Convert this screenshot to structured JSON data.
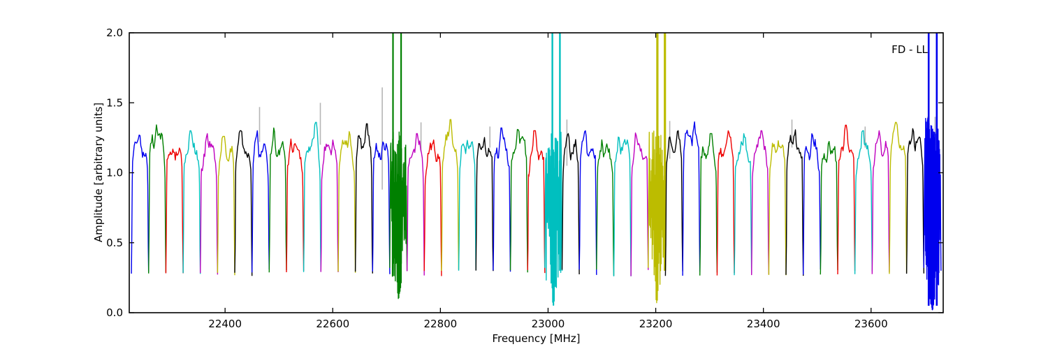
{
  "chart_data": {
    "type": "line",
    "title": "",
    "annotation": "FD - LL",
    "xlabel": "Frequency [MHz]",
    "ylabel": "Amplitude [arbitrary units]",
    "xlim": [
      22222,
      23734
    ],
    "ylim": [
      0.0,
      2.0
    ],
    "xticks": [
      22400,
      22600,
      22800,
      23000,
      23200,
      23400,
      23600
    ],
    "xtick_labels": [
      "22400",
      "22600",
      "22800",
      "23000",
      "23200",
      "23400",
      "23600"
    ],
    "yticks": [
      0.0,
      0.5,
      1.0,
      1.5,
      2.0
    ],
    "ytick_labels": [
      "0.0",
      "0.5",
      "1.0",
      "1.5",
      "2.0"
    ],
    "grid": false,
    "legend": null,
    "palette": {
      "b": "#0000ee",
      "g": "#008000",
      "r": "#ee0000",
      "c": "#00bfbf",
      "m": "#bf00bf",
      "y": "#bcbc00",
      "k": "#000000",
      "gray": "#b5b5b5"
    },
    "subband_width_mhz": 32,
    "baseline_dip_level": 0.28,
    "subbands": [
      {
        "color": "b",
        "f0": 22226,
        "f1": 22258,
        "plateau": 1.17,
        "peak": 1.27,
        "noisy": false
      },
      {
        "color": "g",
        "f0": 22258,
        "f1": 22290,
        "plateau": 1.22,
        "peak": 1.37,
        "noisy": false
      },
      {
        "color": "r",
        "f0": 22290,
        "f1": 22322,
        "plateau": 1.14,
        "peak": 1.22,
        "noisy": false
      },
      {
        "color": "c",
        "f0": 22322,
        "f1": 22354,
        "plateau": 1.18,
        "peak": 1.3,
        "noisy": false
      },
      {
        "color": "m",
        "f0": 22354,
        "f1": 22386,
        "plateau": 1.16,
        "peak": 1.28,
        "noisy": false
      },
      {
        "color": "y",
        "f0": 22386,
        "f1": 22418,
        "plateau": 1.16,
        "peak": 1.26,
        "noisy": false
      },
      {
        "color": "k",
        "f0": 22418,
        "f1": 22450,
        "plateau": 1.18,
        "peak": 1.3,
        "noisy": false
      },
      {
        "color": "b",
        "f0": 22450,
        "f1": 22482,
        "plateau": 1.16,
        "peak": 1.3,
        "noisy": false
      },
      {
        "color": "g",
        "f0": 22482,
        "f1": 22514,
        "plateau": 1.18,
        "peak": 1.32,
        "noisy": false
      },
      {
        "color": "r",
        "f0": 22514,
        "f1": 22546,
        "plateau": 1.16,
        "peak": 1.28,
        "noisy": false
      },
      {
        "color": "c",
        "f0": 22546,
        "f1": 22578,
        "plateau": 1.2,
        "peak": 1.36,
        "noisy": false
      },
      {
        "color": "m",
        "f0": 22578,
        "f1": 22610,
        "plateau": 1.16,
        "peak": 1.26,
        "noisy": false
      },
      {
        "color": "y",
        "f0": 22610,
        "f1": 22642,
        "plateau": 1.18,
        "peak": 1.3,
        "noisy": false
      },
      {
        "color": "k",
        "f0": 22642,
        "f1": 22674,
        "plateau": 1.22,
        "peak": 1.35,
        "noisy": false
      },
      {
        "color": "b",
        "f0": 22674,
        "f1": 22706,
        "plateau": 1.16,
        "peak": 1.28,
        "noisy": false
      },
      {
        "color": "g",
        "f0": 22706,
        "f1": 22738,
        "plateau": 1.15,
        "peak": 1.3,
        "noisy": true,
        "spikes": [
          22712,
          22727
        ],
        "spike_base": 0.35,
        "spike_width": 2.2,
        "dip_min": 0.1,
        "step": 0.55
      },
      {
        "color": "m",
        "f0": 22738,
        "f1": 22770,
        "plateau": 1.16,
        "peak": 1.28,
        "noisy": false
      },
      {
        "color": "r",
        "f0": 22770,
        "f1": 22802,
        "plateau": 1.14,
        "peak": 1.24,
        "noisy": false
      },
      {
        "color": "y",
        "f0": 22802,
        "f1": 22834,
        "plateau": 1.22,
        "peak": 1.38,
        "noisy": false
      },
      {
        "color": "c",
        "f0": 22834,
        "f1": 22866,
        "plateau": 1.16,
        "peak": 1.28,
        "noisy": false
      },
      {
        "color": "k",
        "f0": 22866,
        "f1": 22898,
        "plateau": 1.16,
        "peak": 1.3,
        "noisy": false
      },
      {
        "color": "b",
        "f0": 22898,
        "f1": 22930,
        "plateau": 1.18,
        "peak": 1.32,
        "noisy": false
      },
      {
        "color": "g",
        "f0": 22930,
        "f1": 22962,
        "plateau": 1.2,
        "peak": 1.36,
        "noisy": false
      },
      {
        "color": "r",
        "f0": 22962,
        "f1": 22994,
        "plateau": 1.16,
        "peak": 1.3,
        "noisy": false
      },
      {
        "color": "c",
        "f0": 22994,
        "f1": 23026,
        "plateau": 1.15,
        "peak": 1.28,
        "noisy": true,
        "spikes": [
          23008,
          23022
        ],
        "spike_base": 0.3,
        "spike_width": 2.4,
        "dip_min": 0.05,
        "step": 0.5
      },
      {
        "color": "k",
        "f0": 23026,
        "f1": 23058,
        "plateau": 1.16,
        "peak": 1.28,
        "noisy": false
      },
      {
        "color": "b",
        "f0": 23058,
        "f1": 23090,
        "plateau": 1.18,
        "peak": 1.3,
        "noisy": false
      },
      {
        "color": "g",
        "f0": 23090,
        "f1": 23122,
        "plateau": 1.14,
        "peak": 1.26,
        "noisy": false
      },
      {
        "color": "c",
        "f0": 23122,
        "f1": 23154,
        "plateau": 1.18,
        "peak": 1.3,
        "noisy": false
      },
      {
        "color": "m",
        "f0": 23154,
        "f1": 23186,
        "plateau": 1.16,
        "peak": 1.3,
        "noisy": false
      },
      {
        "color": "y",
        "f0": 23186,
        "f1": 23218,
        "plateau": 1.2,
        "peak": 1.3,
        "noisy": true,
        "spikes": [
          23203,
          23217
        ],
        "spike_base": 0.3,
        "spike_width": 3.2,
        "dip_min": 0.07,
        "step": 0.6
      },
      {
        "color": "k",
        "f0": 23218,
        "f1": 23250,
        "plateau": 1.18,
        "peak": 1.3,
        "noisy": false
      },
      {
        "color": "b",
        "f0": 23250,
        "f1": 23282,
        "plateau": 1.25,
        "peak": 1.42,
        "noisy": false
      },
      {
        "color": "g",
        "f0": 23282,
        "f1": 23314,
        "plateau": 1.16,
        "peak": 1.28,
        "noisy": false
      },
      {
        "color": "r",
        "f0": 23314,
        "f1": 23346,
        "plateau": 1.18,
        "peak": 1.3,
        "noisy": false
      },
      {
        "color": "c",
        "f0": 23346,
        "f1": 23378,
        "plateau": 1.16,
        "peak": 1.28,
        "noisy": false
      },
      {
        "color": "m",
        "f0": 23378,
        "f1": 23410,
        "plateau": 1.18,
        "peak": 1.3,
        "noisy": false
      },
      {
        "color": "y",
        "f0": 23410,
        "f1": 23442,
        "plateau": 1.16,
        "peak": 1.28,
        "noisy": false
      },
      {
        "color": "k",
        "f0": 23442,
        "f1": 23474,
        "plateau": 1.2,
        "peak": 1.32,
        "noisy": false
      },
      {
        "color": "b",
        "f0": 23474,
        "f1": 23506,
        "plateau": 1.16,
        "peak": 1.3,
        "noisy": false
      },
      {
        "color": "g",
        "f0": 23506,
        "f1": 23538,
        "plateau": 1.14,
        "peak": 1.26,
        "noisy": false
      },
      {
        "color": "r",
        "f0": 23538,
        "f1": 23570,
        "plateau": 1.2,
        "peak": 1.34,
        "noisy": false
      },
      {
        "color": "c",
        "f0": 23570,
        "f1": 23602,
        "plateau": 1.16,
        "peak": 1.3,
        "noisy": false
      },
      {
        "color": "m",
        "f0": 23602,
        "f1": 23634,
        "plateau": 1.18,
        "peak": 1.3,
        "noisy": false
      },
      {
        "color": "y",
        "f0": 23634,
        "f1": 23666,
        "plateau": 1.22,
        "peak": 1.36,
        "noisy": false
      },
      {
        "color": "k",
        "f0": 23666,
        "f1": 23698,
        "plateau": 1.2,
        "peak": 1.34,
        "noisy": false
      },
      {
        "color": "b",
        "f0": 23698,
        "f1": 23730,
        "plateau": 1.2,
        "peak": 1.38,
        "noisy": true,
        "spikes": [
          23707,
          23722
        ],
        "spike_base": 0.05,
        "spike_width": 2.6,
        "dip_min": 0.02,
        "step": 0.33,
        "dense": true
      }
    ],
    "gray_spikes": [
      {
        "f": 22464,
        "a0": 1.22,
        "a1": 1.47
      },
      {
        "f": 22577,
        "a0": 1.2,
        "a1": 1.5
      },
      {
        "f": 22692,
        "a0": 0.88,
        "a1": 1.61
      },
      {
        "f": 22764,
        "a0": 1.15,
        "a1": 1.36
      },
      {
        "f": 22892,
        "a0": 1.18,
        "a1": 1.33
      },
      {
        "f": 23035,
        "a0": 1.05,
        "a1": 1.38
      },
      {
        "f": 23226,
        "a0": 1.1,
        "a1": 1.37
      },
      {
        "f": 23453,
        "a0": 1.18,
        "a1": 1.38
      },
      {
        "f": 23589,
        "a0": 1.18,
        "a1": 1.33
      },
      {
        "f": 23705,
        "a0": 1.22,
        "a1": 1.4
      },
      {
        "f": 23719,
        "a0": 1.2,
        "a1": 1.4
      }
    ]
  }
}
